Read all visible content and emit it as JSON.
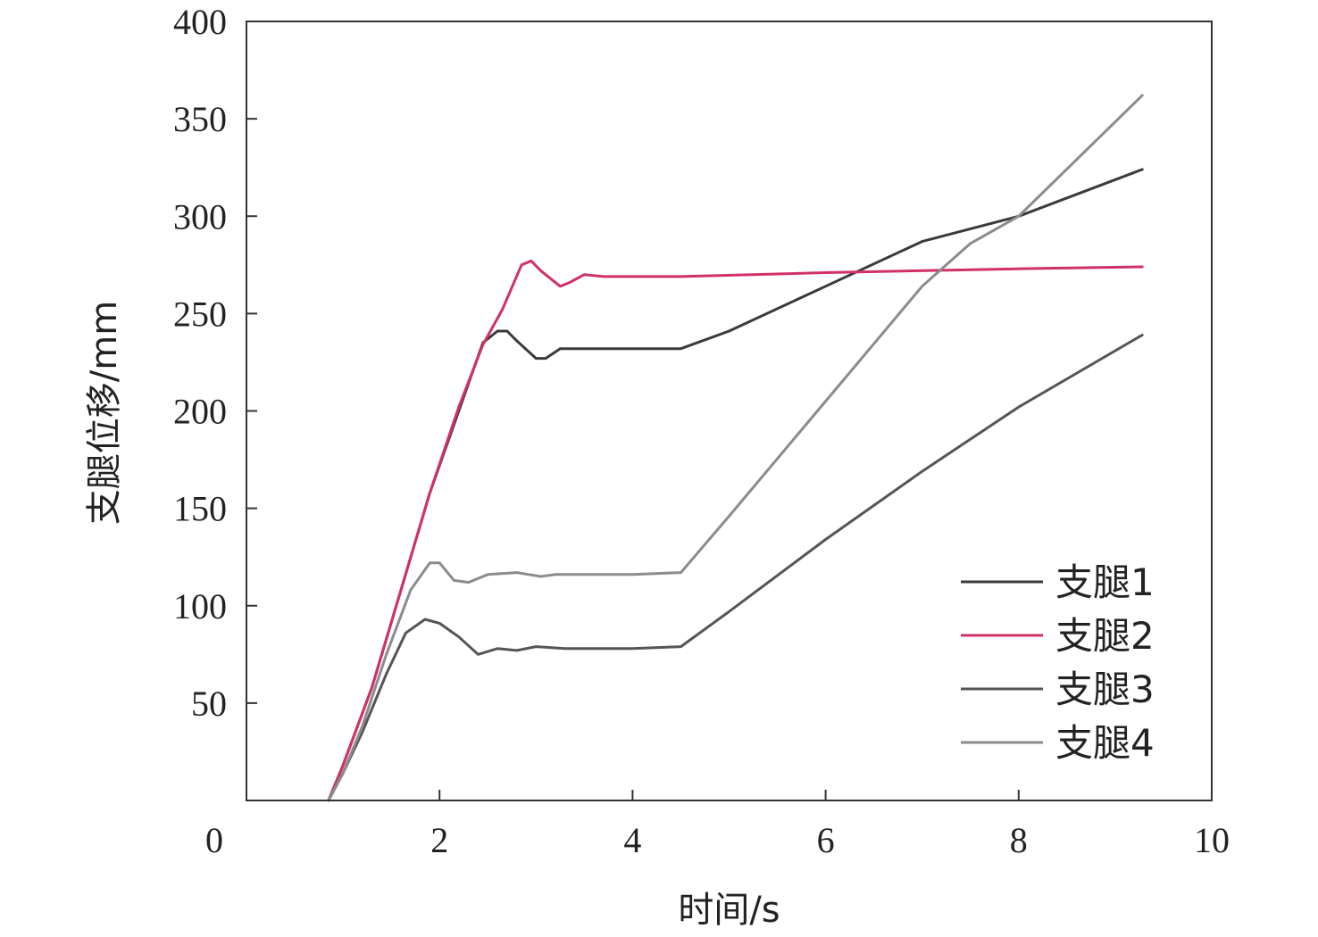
{
  "chart_data": {
    "type": "line",
    "title": "",
    "xlabel": "时间/s",
    "ylabel": "支腿位移/mm",
    "xlim": [
      0,
      10
    ],
    "ylim": [
      0,
      400
    ],
    "xticks": [
      0,
      2,
      4,
      6,
      8,
      10
    ],
    "yticks": [
      50,
      100,
      150,
      200,
      250,
      300,
      350,
      400
    ],
    "grid": false,
    "legend_position": "bottom-right",
    "series": [
      {
        "name": "支腿1",
        "color": "#3a3a3a",
        "x": [
          0.85,
          1.0,
          1.3,
          1.6,
          1.9,
          2.2,
          2.45,
          2.6,
          2.7,
          2.8,
          3.0,
          3.1,
          3.25,
          3.5,
          4.0,
          4.5,
          5.0,
          6.0,
          7.0,
          8.0,
          9.28
        ],
        "y": [
          0,
          18,
          58,
          108,
          158,
          200,
          235,
          241,
          241,
          236,
          227,
          227,
          232,
          232,
          232,
          232,
          241,
          264,
          287,
          300,
          324
        ]
      },
      {
        "name": "支腿2",
        "color": "#d1306a",
        "x": [
          0.85,
          1.0,
          1.3,
          1.6,
          1.9,
          2.2,
          2.45,
          2.65,
          2.85,
          2.95,
          3.05,
          3.25,
          3.35,
          3.5,
          3.7,
          4.5,
          6.0,
          8.0,
          9.28
        ],
        "y": [
          0,
          18,
          58,
          108,
          158,
          202,
          234,
          252,
          275,
          277,
          272,
          264,
          266,
          270,
          269,
          269,
          271,
          273,
          274
        ]
      },
      {
        "name": "支腿3",
        "color": "#555555",
        "x": [
          0.85,
          1.0,
          1.2,
          1.45,
          1.65,
          1.85,
          2.0,
          2.2,
          2.4,
          2.6,
          2.8,
          3.0,
          3.3,
          3.7,
          4.0,
          4.5,
          5.0,
          6.0,
          7.0,
          8.0,
          9.28
        ],
        "y": [
          0,
          14,
          35,
          65,
          86,
          93,
          91,
          84,
          75,
          78,
          77,
          79,
          78,
          78,
          78,
          79,
          97,
          134,
          169,
          202,
          239
        ]
      },
      {
        "name": "支腿4",
        "color": "#8c8c8c",
        "x": [
          0.85,
          1.0,
          1.2,
          1.45,
          1.7,
          1.9,
          2.0,
          2.15,
          2.3,
          2.5,
          2.8,
          3.05,
          3.2,
          3.5,
          4.0,
          4.5,
          5.0,
          6.0,
          7.0,
          7.5,
          8.0,
          9.28
        ],
        "y": [
          0,
          14,
          38,
          75,
          108,
          122,
          122,
          113,
          112,
          116,
          117,
          115,
          116,
          116,
          116,
          117,
          146,
          205,
          264,
          286,
          300,
          362
        ]
      }
    ]
  }
}
